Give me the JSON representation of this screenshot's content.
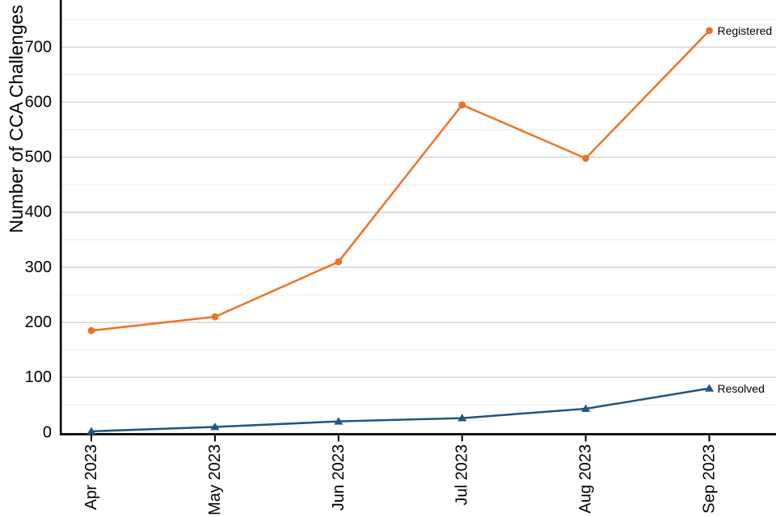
{
  "chart_data": {
    "type": "line",
    "title": "",
    "xlabel": "",
    "ylabel": "Number of CCA Challenges",
    "categories": [
      "Apr 2023",
      "May 2023",
      "Jun 2023",
      "Jul 2023",
      "Aug 2023",
      "Sep 2023"
    ],
    "series": [
      {
        "name": "Registered",
        "values": [
          185,
          210,
          310,
          595,
          498,
          730
        ],
        "color": "#ED7327",
        "marker": "circle",
        "end_label": "Registered"
      },
      {
        "name": "Resolved",
        "values": [
          2,
          10,
          20,
          26,
          43,
          80
        ],
        "color": "#1F5582",
        "marker": "triangle-up",
        "end_label": "Resolved"
      }
    ],
    "ylim": [
      0,
      785
    ],
    "yticks": [
      0,
      100,
      200,
      300,
      400,
      500,
      600,
      700
    ],
    "minor_grid_interval": 50,
    "minor_grid_max": 750,
    "grid": "horizontal",
    "legend_position": "labels-at-line-ends",
    "colors": {
      "axis": "#000000",
      "major_gridline": "#D2D2D2",
      "minor_gridline": "#EBEBEB",
      "tick_label": "#000000"
    }
  }
}
